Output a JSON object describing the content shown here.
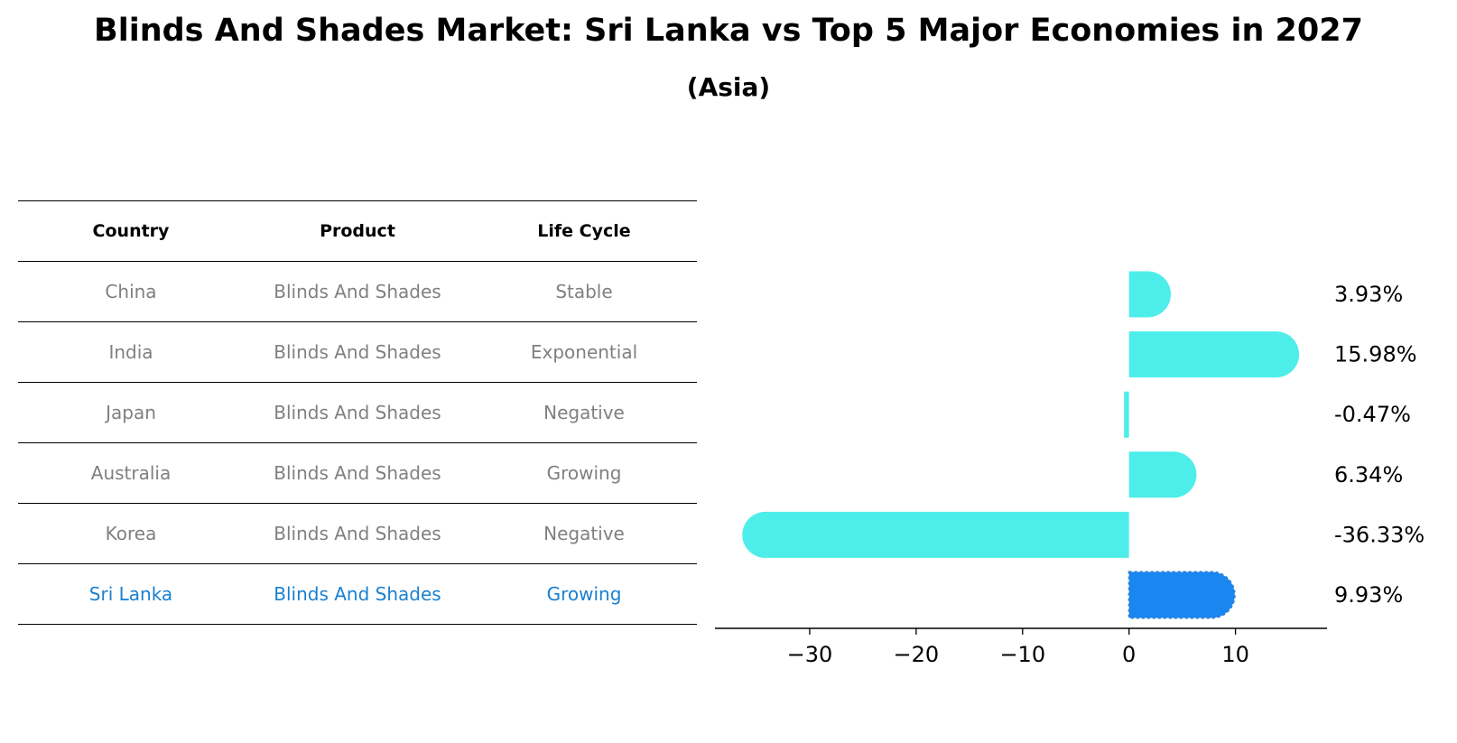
{
  "title": "Blinds And Shades Market: Sri Lanka vs Top 5 Major Economies in 2027",
  "subtitle": "(Asia)",
  "table": {
    "headers": [
      "Country",
      "Product",
      "Life Cycle"
    ],
    "rows": [
      [
        "China",
        "Blinds And Shades",
        "Stable"
      ],
      [
        "India",
        "Blinds And Shades",
        "Exponential"
      ],
      [
        "Japan",
        "Blinds And Shades",
        "Negative"
      ],
      [
        "Australia",
        "Blinds And Shades",
        "Growing"
      ],
      [
        "Korea",
        "Blinds And Shades",
        "Negative"
      ],
      [
        "Sri Lanka",
        "Blinds And Shades",
        "Growing"
      ]
    ]
  },
  "chart_data": {
    "type": "bar",
    "orientation": "horizontal",
    "categories": [
      "China",
      "India",
      "Japan",
      "Australia",
      "Korea",
      "Sri Lanka"
    ],
    "values": [
      3.93,
      15.98,
      -0.47,
      6.34,
      -36.33,
      9.93
    ],
    "value_labels": [
      "3.93%",
      "15.98%",
      "-0.47%",
      "6.34%",
      "-36.33%",
      "9.93%"
    ],
    "highlight": "Sri Lanka",
    "xlim": [
      -38.9,
      18.6
    ],
    "xticks": [
      -30,
      -20,
      -10,
      0,
      10
    ],
    "xtick_labels": [
      "−30",
      "−20",
      "−10",
      "0",
      "10"
    ],
    "colors": {
      "bar": "#4deeea",
      "highlight": "#1a86f0"
    }
  }
}
